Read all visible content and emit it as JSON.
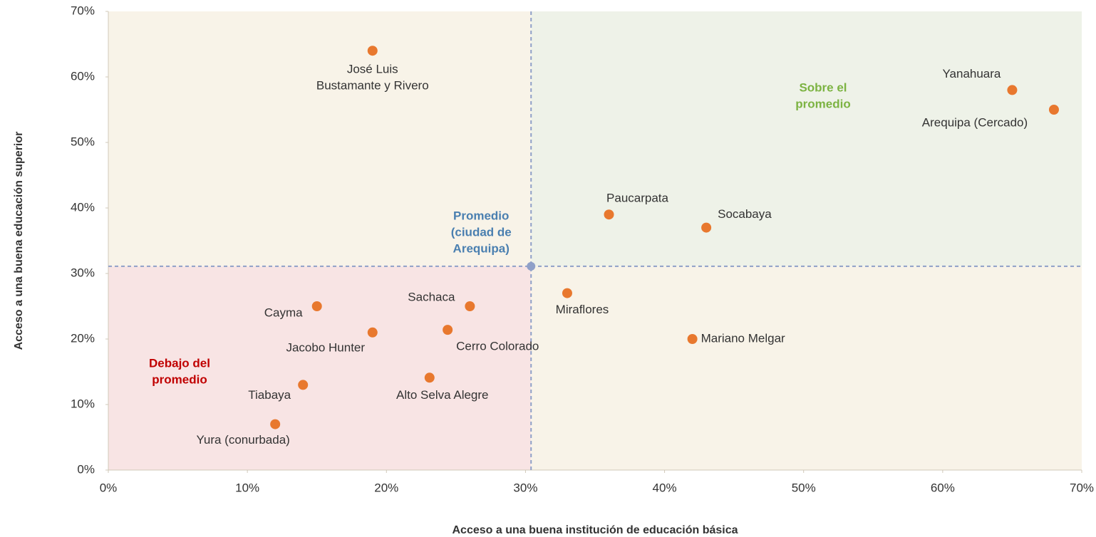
{
  "chart_data": {
    "type": "scatter",
    "x_label": "Acceso a una buena institución de educación básica",
    "y_label": "Acceso a una buena educación superior",
    "xlim": [
      0,
      70
    ],
    "ylim": [
      0,
      70
    ],
    "xticks": [
      {
        "value": 0,
        "label": "0%"
      },
      {
        "value": 10,
        "label": "10%"
      },
      {
        "value": 20,
        "label": "20%"
      },
      {
        "value": 30,
        "label": "30%"
      },
      {
        "value": 40,
        "label": "40%"
      },
      {
        "value": 50,
        "label": "50%"
      },
      {
        "value": 60,
        "label": "60%"
      },
      {
        "value": 70,
        "label": "70%"
      }
    ],
    "yticks": [
      {
        "value": 0,
        "label": "0%"
      },
      {
        "value": 10,
        "label": "10%"
      },
      {
        "value": 20,
        "label": "20%"
      },
      {
        "value": 30,
        "label": "30%"
      },
      {
        "value": 40,
        "label": "40%"
      },
      {
        "value": 50,
        "label": "50%"
      },
      {
        "value": 60,
        "label": "60%"
      },
      {
        "value": 70,
        "label": "70%"
      }
    ],
    "color": "#e8782e",
    "points": [
      {
        "label": [
          "José Luis",
          "Bustamante y Rivero"
        ],
        "x": 19,
        "y": 64
      },
      {
        "label": [
          "Yanahuara"
        ],
        "x": 65,
        "y": 58
      },
      {
        "label": [
          "Arequipa (Cercado)"
        ],
        "x": 68,
        "y": 55
      },
      {
        "label": [
          "Paucarpata"
        ],
        "x": 36,
        "y": 39
      },
      {
        "label": [
          "Socabaya"
        ],
        "x": 43,
        "y": 37
      },
      {
        "label": [
          "Miraflores"
        ],
        "x": 33,
        "y": 27
      },
      {
        "label": [
          "Mariano Melgar"
        ],
        "x": 42,
        "y": 20
      },
      {
        "label": [
          "Cayma"
        ],
        "x": 15,
        "y": 25
      },
      {
        "label": [
          "Sachaca"
        ],
        "x": 26,
        "y": 25
      },
      {
        "label": [
          "Jacobo Hunter"
        ],
        "x": 19,
        "y": 21
      },
      {
        "label": [
          "Cerro Colorado"
        ],
        "x": 24.4,
        "y": 21.4
      },
      {
        "label": [
          "Alto Selva Alegre"
        ],
        "x": 23.1,
        "y": 14.1
      },
      {
        "label": [
          "Tiabaya"
        ],
        "x": 14,
        "y": 13
      },
      {
        "label": [
          "Yura (conurbada)"
        ],
        "x": 12,
        "y": 7
      }
    ],
    "average": {
      "label": [
        "Promedio",
        "(ciudad de",
        "Arequipa)"
      ],
      "x": 30.4,
      "y": 31.1,
      "color": "#8fa0c8"
    },
    "above_label": [
      "Sobre el",
      "promedio"
    ],
    "below_label": [
      "Debajo del",
      "promedio"
    ]
  }
}
